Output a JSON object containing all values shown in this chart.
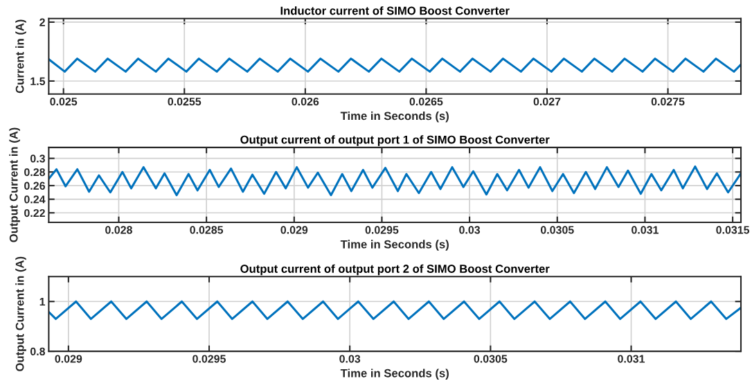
{
  "chart_data": [
    {
      "type": "line",
      "title": "Inductor current of SIMO Boost Converter",
      "xlabel": "Time in Seconds (s)",
      "ylabel": "Current in (A)",
      "xlim": [
        0.024939,
        0.027802
      ],
      "xticks": [
        0.025,
        0.0255,
        0.026,
        0.0265,
        0.027,
        0.0275
      ],
      "ylim": [
        1.39,
        2.03
      ],
      "yticks": [
        1.5,
        2
      ],
      "grid": true,
      "series": [
        {
          "color": "#0072bd",
          "x": [
            0.024939,
            0.025005,
            0.025057,
            0.025131,
            0.025183,
            0.025257,
            0.025309,
            0.025382,
            0.025434,
            0.025508,
            0.02556,
            0.025634,
            0.025686,
            0.02576,
            0.025812,
            0.025886,
            0.025938,
            0.026011,
            0.026063,
            0.026137,
            0.026189,
            0.026263,
            0.026315,
            0.026389,
            0.026441,
            0.026515,
            0.026567,
            0.02664,
            0.026692,
            0.026766,
            0.026818,
            0.026892,
            0.026944,
            0.027018,
            0.02707,
            0.027144,
            0.027196,
            0.027269,
            0.027321,
            0.027395,
            0.027447,
            0.027521,
            0.027573,
            0.027647,
            0.027699,
            0.027773,
            0.027802
          ],
          "values": [
            1.685,
            1.58,
            1.69,
            1.58,
            1.69,
            1.58,
            1.69,
            1.58,
            1.69,
            1.58,
            1.69,
            1.58,
            1.69,
            1.58,
            1.69,
            1.58,
            1.69,
            1.58,
            1.69,
            1.58,
            1.69,
            1.58,
            1.69,
            1.58,
            1.69,
            1.58,
            1.69,
            1.58,
            1.69,
            1.58,
            1.69,
            1.58,
            1.69,
            1.58,
            1.69,
            1.58,
            1.69,
            1.58,
            1.69,
            1.58,
            1.69,
            1.58,
            1.69,
            1.58,
            1.69,
            1.58,
            1.64
          ]
        }
      ]
    },
    {
      "type": "line",
      "title": "Output current of output port 1 of SIMO Boost Converter",
      "xlabel": "Time in Seconds (s)",
      "ylabel": "Output Current in (A)",
      "xlim": [
        0.027601,
        0.031547
      ],
      "xticks": [
        0.028,
        0.0285,
        0.029,
        0.0295,
        0.03,
        0.0305,
        0.031,
        0.0315
      ],
      "ylim": [
        0.206,
        0.316
      ],
      "yticks": [
        0.22,
        0.24,
        0.26,
        0.28,
        0.3
      ],
      "grid": true,
      "series": [
        {
          "color": "#0072bd",
          "x": [
            0.027601,
            0.027645,
            0.027697,
            0.027764,
            0.027831,
            0.027887,
            0.027952,
            0.028021,
            0.028071,
            0.028141,
            0.028212,
            0.028261,
            0.02833,
            0.028398,
            0.028449,
            0.028519,
            0.02857,
            0.02864,
            0.028708,
            0.028762,
            0.028829,
            0.028897,
            0.028952,
            0.029015,
            0.029079,
            0.029135,
            0.02921,
            0.029274,
            0.029326,
            0.029393,
            0.029446,
            0.02952,
            0.029591,
            0.02964,
            0.029711,
            0.029781,
            0.029834,
            0.029901,
            0.029965,
            0.030021,
            0.030096,
            0.030158,
            0.030214,
            0.030282,
            0.030336,
            0.030402,
            0.030472,
            0.030533,
            0.030595,
            0.030663,
            0.030716,
            0.030783,
            0.030849,
            0.030903,
            0.030976,
            0.031037,
            0.031093,
            0.031164,
            0.031216,
            0.031286,
            0.031354,
            0.03141,
            0.031474,
            0.031547
          ],
          "values": [
            0.27,
            0.284,
            0.259,
            0.284,
            0.251,
            0.275,
            0.25,
            0.28,
            0.256,
            0.287,
            0.256,
            0.278,
            0.246,
            0.277,
            0.253,
            0.283,
            0.258,
            0.285,
            0.251,
            0.276,
            0.248,
            0.28,
            0.256,
            0.287,
            0.257,
            0.279,
            0.246,
            0.277,
            0.252,
            0.283,
            0.257,
            0.286,
            0.252,
            0.277,
            0.249,
            0.28,
            0.255,
            0.287,
            0.258,
            0.281,
            0.247,
            0.277,
            0.253,
            0.283,
            0.257,
            0.287,
            0.252,
            0.277,
            0.249,
            0.28,
            0.255,
            0.287,
            0.258,
            0.282,
            0.248,
            0.277,
            0.253,
            0.283,
            0.256,
            0.288,
            0.255,
            0.278,
            0.25,
            0.278
          ]
        }
      ]
    },
    {
      "type": "line",
      "title": "Output current of output port 2 of SIMO Boost Converter",
      "xlabel": "Time in Seconds (s)",
      "ylabel": "Output Current in (A)",
      "xlim": [
        0.02893,
        0.03139
      ],
      "xticks": [
        0.029,
        0.0295,
        0.03,
        0.0305,
        0.031
      ],
      "ylim": [
        0.8,
        1.1
      ],
      "yticks": [
        0.8,
        1
      ],
      "grid": true,
      "series": [
        {
          "color": "#0072bd",
          "x": [
            0.02893,
            0.028955,
            0.029027,
            0.02908,
            0.029152,
            0.029206,
            0.029278,
            0.029331,
            0.029403,
            0.029457,
            0.029529,
            0.029582,
            0.029654,
            0.029707,
            0.029779,
            0.029833,
            0.029905,
            0.029958,
            0.03003,
            0.030084,
            0.030156,
            0.030209,
            0.030281,
            0.030334,
            0.030406,
            0.03046,
            0.030532,
            0.030585,
            0.030657,
            0.030711,
            0.030783,
            0.030836,
            0.030908,
            0.030961,
            0.031033,
            0.031087,
            0.031159,
            0.031212,
            0.031284,
            0.031338,
            0.03139
          ],
          "values": [
            0.958,
            0.93,
            1.0,
            0.93,
            1.0,
            0.93,
            1.0,
            0.93,
            1.0,
            0.93,
            1.0,
            0.93,
            1.0,
            0.93,
            1.0,
            0.93,
            1.0,
            0.93,
            1.0,
            0.93,
            1.0,
            0.93,
            1.0,
            0.93,
            1.0,
            0.93,
            1.0,
            0.93,
            1.0,
            0.93,
            1.0,
            0.93,
            1.0,
            0.93,
            1.0,
            0.93,
            1.0,
            0.93,
            1.0,
            0.93,
            0.975
          ]
        }
      ]
    }
  ]
}
